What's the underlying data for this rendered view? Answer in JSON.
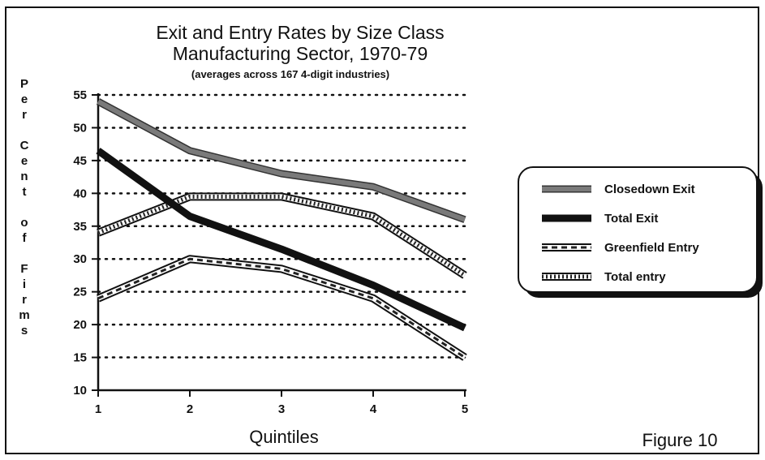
{
  "chart_data": {
    "type": "line",
    "title": "Exit and Entry Rates by Size Class",
    "subtitle": "Manufacturing Sector, 1970-79",
    "note": "(averages across 167 4-digit industries)",
    "ylabel": "Per Cent of Firms",
    "xlabel": "Quintiles",
    "x": [
      1,
      2,
      3,
      4,
      5
    ],
    "ylim": [
      10,
      55
    ],
    "yticks": [
      10,
      15,
      20,
      25,
      30,
      35,
      40,
      45,
      50,
      55
    ],
    "grid": "dotted horizontal",
    "legend_position": "right",
    "series": [
      {
        "name": "Closedown Exit",
        "values": [
          54,
          46.5,
          43,
          41,
          36
        ],
        "style": "gray-thick"
      },
      {
        "name": "Total Exit",
        "values": [
          46.5,
          36.5,
          31.5,
          26,
          19.5
        ],
        "style": "black-thick"
      },
      {
        "name": "Greenfield Entry",
        "values": [
          24,
          30,
          28.5,
          24,
          15
        ],
        "style": "dashed-outline"
      },
      {
        "name": "Total entry",
        "values": [
          34,
          39.5,
          39.5,
          36.5,
          27.5
        ],
        "style": "hatched-outline"
      }
    ]
  },
  "figure_label": "Figure 10"
}
